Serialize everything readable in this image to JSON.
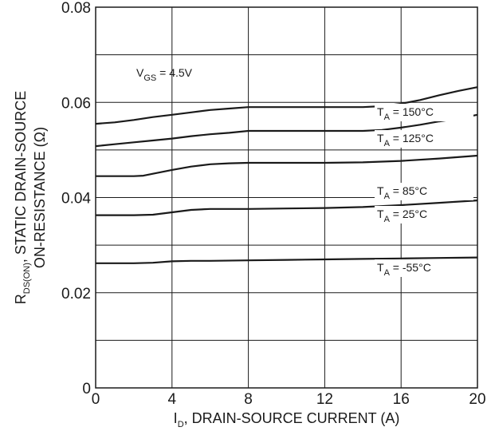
{
  "chart_data": {
    "type": "line",
    "xlabel_main": "I",
    "xlabel_sub": "D",
    "xlabel_rest": ", DRAIN-SOURCE CURRENT (A)",
    "ylabel_line1_main": "R",
    "ylabel_line1_sub": "DS(ON)",
    "ylabel_line1_rest": ", STATIC DRAIN-SOURCE",
    "ylabel_line2": "ON-RESISTANCE (Ω)",
    "annotation": {
      "main": "V",
      "sub": "GS",
      "rest": " = 4.5V"
    },
    "xlim": [
      0,
      20
    ],
    "ylim": [
      0,
      0.08
    ],
    "xticks": [
      0,
      4,
      8,
      12,
      16,
      20
    ],
    "xtick_labels": [
      "0",
      "4",
      "8",
      "12",
      "16",
      "20"
    ],
    "yticks": [
      0,
      0.02,
      0.04,
      0.06,
      0.08
    ],
    "ytick_labels": [
      "0",
      "0.02",
      "0.04",
      "0.06",
      "0.08"
    ],
    "grid": true,
    "series": [
      {
        "label_main": "T",
        "label_sub": "A",
        "label_rest": " = 150°C",
        "x": [
          0,
          1,
          2,
          3,
          4,
          5,
          6,
          7,
          8,
          10,
          12,
          14,
          15,
          16,
          17,
          18,
          19,
          20
        ],
        "y": [
          0.0555,
          0.0558,
          0.0563,
          0.0569,
          0.0574,
          0.0579,
          0.0584,
          0.0587,
          0.059,
          0.059,
          0.059,
          0.059,
          0.0592,
          0.0597,
          0.0605,
          0.0615,
          0.0624,
          0.0632
        ]
      },
      {
        "label_main": "T",
        "label_sub": "A",
        "label_rest": " = 125°C",
        "x": [
          0,
          1,
          2,
          3,
          4,
          5,
          6,
          7,
          8,
          10,
          12,
          14,
          15,
          16,
          17,
          18,
          19,
          20
        ],
        "y": [
          0.0508,
          0.0512,
          0.0516,
          0.052,
          0.0524,
          0.0529,
          0.0533,
          0.0536,
          0.054,
          0.054,
          0.054,
          0.054,
          0.0542,
          0.0547,
          0.0553,
          0.056,
          0.0566,
          0.0574
        ]
      },
      {
        "label_main": "T",
        "label_sub": "A",
        "label_rest": " = 85°C",
        "x": [
          0,
          1,
          2,
          2.5,
          3,
          4,
          5,
          6,
          7,
          8,
          10,
          12,
          14,
          16,
          18,
          20
        ],
        "y": [
          0.0445,
          0.0445,
          0.0445,
          0.0446,
          0.045,
          0.0458,
          0.0465,
          0.047,
          0.0472,
          0.0473,
          0.0473,
          0.0473,
          0.0474,
          0.0477,
          0.0482,
          0.0488
        ]
      },
      {
        "label_main": "T",
        "label_sub": "A",
        "label_rest": " = 25°C",
        "x": [
          0,
          1,
          2,
          3,
          4,
          5,
          6,
          7,
          8,
          10,
          12,
          14,
          16,
          18,
          20
        ],
        "y": [
          0.0363,
          0.0363,
          0.0363,
          0.0364,
          0.0369,
          0.0374,
          0.0376,
          0.0376,
          0.0376,
          0.0377,
          0.0378,
          0.038,
          0.0384,
          0.0389,
          0.0394
        ]
      },
      {
        "label_main": "T",
        "label_sub": "A",
        "label_rest": " = -55°C",
        "x": [
          0,
          2,
          3,
          4,
          5,
          6,
          8,
          10,
          12,
          14,
          16,
          18,
          20
        ],
        "y": [
          0.0262,
          0.0262,
          0.0263,
          0.0266,
          0.0267,
          0.0267,
          0.0268,
          0.0269,
          0.027,
          0.0271,
          0.0272,
          0.0273,
          0.0274
        ]
      }
    ],
    "colors": {
      "line": "#1a1a1a",
      "grid": "#1a1a1a",
      "background": "#ffffff"
    }
  }
}
